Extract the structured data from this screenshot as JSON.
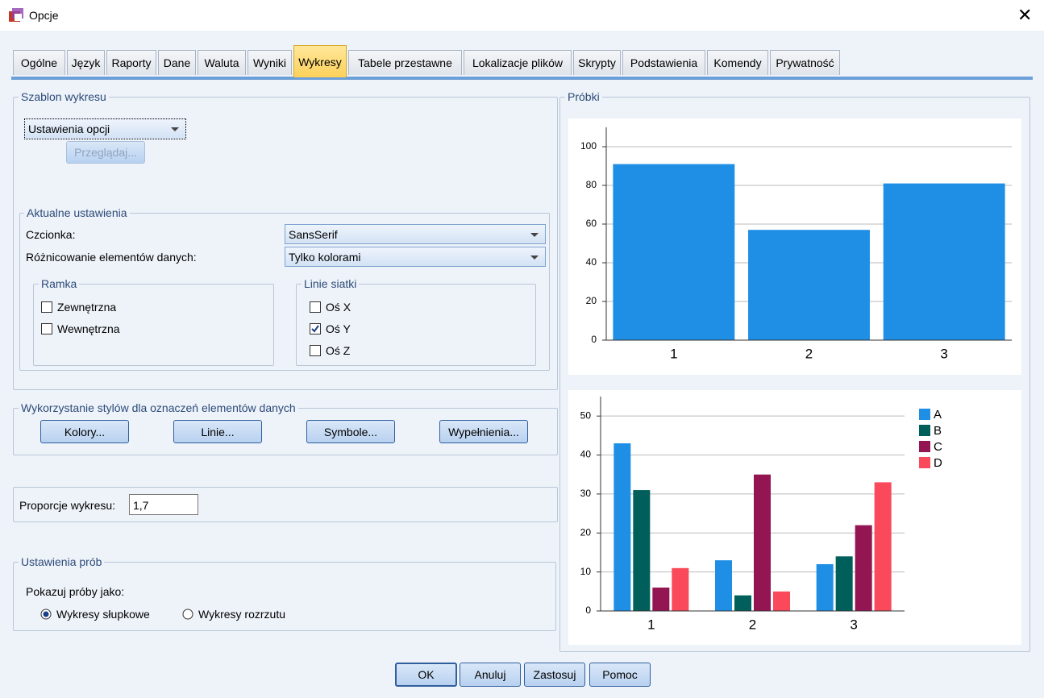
{
  "window": {
    "title": "Opcje"
  },
  "tabs": {
    "labels": [
      "Ogólne",
      "Język",
      "Raporty",
      "Dane",
      "Waluta",
      "Wyniki",
      "Wykresy",
      "Tabele przestawne",
      "Lokalizacje plików",
      "Skrypty",
      "Podstawienia",
      "Komendy",
      "Prywatność"
    ],
    "active": 6
  },
  "template": {
    "legend": "Szablon wykresu",
    "select": "Ustawienia opcji",
    "browse": "Przeglądaj..."
  },
  "current": {
    "legend": "Aktualne ustawienia",
    "font_label": "Czcionka:",
    "font_value": "SansSerif",
    "diff_label": "Różnicowanie elementów danych:",
    "diff_value": "Tylko kolorami"
  },
  "frame": {
    "legend": "Ramka",
    "options": [
      {
        "label": "Zewnętrzna",
        "checked": false
      },
      {
        "label": "Wewnętrzna",
        "checked": false
      }
    ]
  },
  "gridlines": {
    "legend": "Linie siatki",
    "options": [
      {
        "label": "Oś X",
        "checked": false
      },
      {
        "label": "Oś Y",
        "checked": true
      },
      {
        "label": "Oś Z",
        "checked": false
      }
    ]
  },
  "styles": {
    "legend": "Wykorzystanie stylów dla oznaczeń elementów danych",
    "buttons": [
      "Kolory...",
      "Linie...",
      "Symbole...",
      "Wypełnienia..."
    ]
  },
  "aspect": {
    "label": "Proporcje wykresu:",
    "value": "1,7"
  },
  "samples": {
    "legend": "Ustawienia prób",
    "prompt": "Pokazuj próby jako:",
    "options": [
      {
        "label": "Wykresy słupkowe",
        "selected": true
      },
      {
        "label": "Wykresy rozrzutu",
        "selected": false
      }
    ]
  },
  "preview": {
    "legend": "Próbki"
  },
  "footer": {
    "buttons": [
      "OK",
      "Anuluj",
      "Zastosuj",
      "Pomoc"
    ]
  },
  "chart_data": [
    {
      "type": "bar",
      "categories": [
        "1",
        "2",
        "3"
      ],
      "values": [
        91,
        57,
        81
      ],
      "color": "#1f8fe6",
      "ylim": [
        0,
        110
      ],
      "yticks": [
        0,
        20,
        40,
        60,
        80,
        100
      ],
      "grid": true
    },
    {
      "type": "bar",
      "categories": [
        "1",
        "2",
        "3"
      ],
      "series": [
        {
          "name": "A",
          "color": "#1f8fe6",
          "values": [
            43,
            13,
            12
          ]
        },
        {
          "name": "B",
          "color": "#005f5a",
          "values": [
            31,
            4,
            14
          ]
        },
        {
          "name": "C",
          "color": "#931652",
          "values": [
            6,
            35,
            22
          ]
        },
        {
          "name": "D",
          "color": "#f9495a",
          "values": [
            11,
            5,
            33
          ]
        }
      ],
      "ylim": [
        0,
        55
      ],
      "yticks": [
        0,
        10,
        20,
        30,
        40,
        50
      ],
      "grid": true,
      "legend": "right"
    }
  ]
}
